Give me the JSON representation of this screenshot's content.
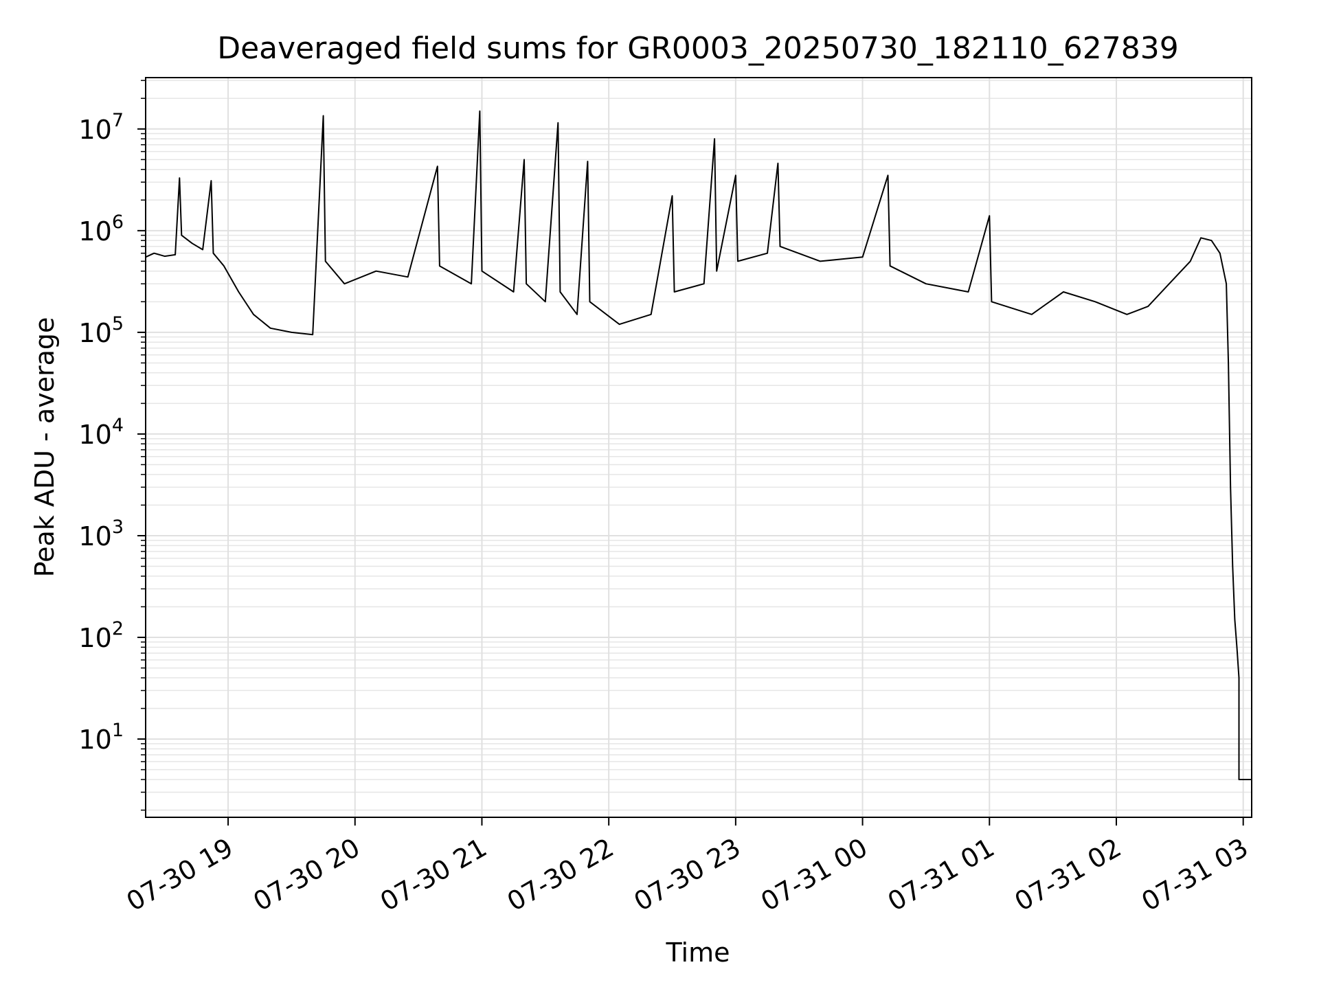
{
  "chart_data": {
    "type": "line",
    "title": "Deaveraged field sums for GR0003_20250730_182110_627839",
    "xlabel": "Time",
    "ylabel": "Peak ADU - average",
    "yscale": "log",
    "ylim": [
      1.7,
      32000000
    ],
    "xlim": [
      "2025-07-30 18:21",
      "2025-07-31 03:04"
    ],
    "grid": true,
    "legend": "none",
    "line_color": "#000000",
    "x_ticks": [
      "2025-07-30 19:00",
      "2025-07-30 20:00",
      "2025-07-30 21:00",
      "2025-07-30 22:00",
      "2025-07-30 23:00",
      "2025-07-31 00:00",
      "2025-07-31 01:00",
      "2025-07-31 02:00",
      "2025-07-31 03:00"
    ],
    "x_tick_labels": [
      "07-30 19",
      "07-30 20",
      "07-30 21",
      "07-30 22",
      "07-30 23",
      "07-31 00",
      "07-31 01",
      "07-31 02",
      "07-31 03"
    ],
    "y_ticks": [
      10,
      100,
      1000,
      10000,
      100000,
      1000000,
      10000000
    ],
    "y_tick_labels": [
      {
        "base": "10",
        "exp": "1"
      },
      {
        "base": "10",
        "exp": "2"
      },
      {
        "base": "10",
        "exp": "3"
      },
      {
        "base": "10",
        "exp": "4"
      },
      {
        "base": "10",
        "exp": "5"
      },
      {
        "base": "10",
        "exp": "6"
      },
      {
        "base": "10",
        "exp": "7"
      }
    ],
    "series": [
      {
        "points": [
          [
            "2025-07-30 18:21",
            550000
          ],
          [
            "2025-07-30 18:25",
            600000
          ],
          [
            "2025-07-30 18:30",
            560000
          ],
          [
            "2025-07-30 18:35",
            580000
          ],
          [
            "2025-07-30 18:37",
            3300000
          ],
          [
            "2025-07-30 18:38",
            900000
          ],
          [
            "2025-07-30 18:43",
            750000
          ],
          [
            "2025-07-30 18:48",
            650000
          ],
          [
            "2025-07-30 18:52",
            3100000
          ],
          [
            "2025-07-30 18:53",
            600000
          ],
          [
            "2025-07-30 18:58",
            450000
          ],
          [
            "2025-07-30 19:05",
            250000
          ],
          [
            "2025-07-30 19:12",
            150000
          ],
          [
            "2025-07-30 19:20",
            110000
          ],
          [
            "2025-07-30 19:30",
            100000
          ],
          [
            "2025-07-30 19:40",
            95000
          ],
          [
            "2025-07-30 19:45",
            13500000
          ],
          [
            "2025-07-30 19:46",
            500000
          ],
          [
            "2025-07-30 19:55",
            300000
          ],
          [
            "2025-07-30 20:10",
            400000
          ],
          [
            "2025-07-30 20:25",
            350000
          ],
          [
            "2025-07-30 20:39",
            4300000
          ],
          [
            "2025-07-30 20:40",
            450000
          ],
          [
            "2025-07-30 20:55",
            300000
          ],
          [
            "2025-07-30 20:59",
            15000000
          ],
          [
            "2025-07-30 21:00",
            400000
          ],
          [
            "2025-07-30 21:15",
            250000
          ],
          [
            "2025-07-30 21:20",
            5000000
          ],
          [
            "2025-07-30 21:21",
            300000
          ],
          [
            "2025-07-30 21:30",
            200000
          ],
          [
            "2025-07-30 21:36",
            11500000
          ],
          [
            "2025-07-30 21:37",
            250000
          ],
          [
            "2025-07-30 21:45",
            150000
          ],
          [
            "2025-07-30 21:50",
            4800000
          ],
          [
            "2025-07-30 21:51",
            200000
          ],
          [
            "2025-07-30 22:05",
            120000
          ],
          [
            "2025-07-30 22:20",
            150000
          ],
          [
            "2025-07-30 22:30",
            2200000
          ],
          [
            "2025-07-30 22:31",
            250000
          ],
          [
            "2025-07-30 22:45",
            300000
          ],
          [
            "2025-07-30 22:50",
            8000000
          ],
          [
            "2025-07-30 22:51",
            400000
          ],
          [
            "2025-07-30 23:00",
            3500000
          ],
          [
            "2025-07-30 23:01",
            500000
          ],
          [
            "2025-07-30 23:15",
            600000
          ],
          [
            "2025-07-30 23:20",
            4600000
          ],
          [
            "2025-07-30 23:21",
            700000
          ],
          [
            "2025-07-30 23:40",
            500000
          ],
          [
            "2025-07-31 00:00",
            550000
          ],
          [
            "2025-07-31 00:12",
            3500000
          ],
          [
            "2025-07-31 00:13",
            450000
          ],
          [
            "2025-07-31 00:30",
            300000
          ],
          [
            "2025-07-31 00:50",
            250000
          ],
          [
            "2025-07-31 01:00",
            1400000
          ],
          [
            "2025-07-31 01:01",
            200000
          ],
          [
            "2025-07-31 01:20",
            150000
          ],
          [
            "2025-07-31 01:35",
            250000
          ],
          [
            "2025-07-31 01:50",
            200000
          ],
          [
            "2025-07-31 02:05",
            150000
          ],
          [
            "2025-07-31 02:15",
            180000
          ],
          [
            "2025-07-31 02:25",
            300000
          ],
          [
            "2025-07-31 02:35",
            500000
          ],
          [
            "2025-07-31 02:40",
            850000
          ],
          [
            "2025-07-31 02:45",
            800000
          ],
          [
            "2025-07-31 02:49",
            600000
          ],
          [
            "2025-07-31 02:52",
            300000
          ],
          [
            "2025-07-31 02:53",
            50000
          ],
          [
            "2025-07-31 02:54",
            3000
          ],
          [
            "2025-07-31 02:55",
            500
          ],
          [
            "2025-07-31 02:56",
            150
          ],
          [
            "2025-07-31 02:57",
            80
          ],
          [
            "2025-07-31 02:58",
            40
          ],
          [
            "2025-07-31 02:58",
            4
          ],
          [
            "2025-07-31 03:04",
            4
          ]
        ]
      }
    ]
  }
}
